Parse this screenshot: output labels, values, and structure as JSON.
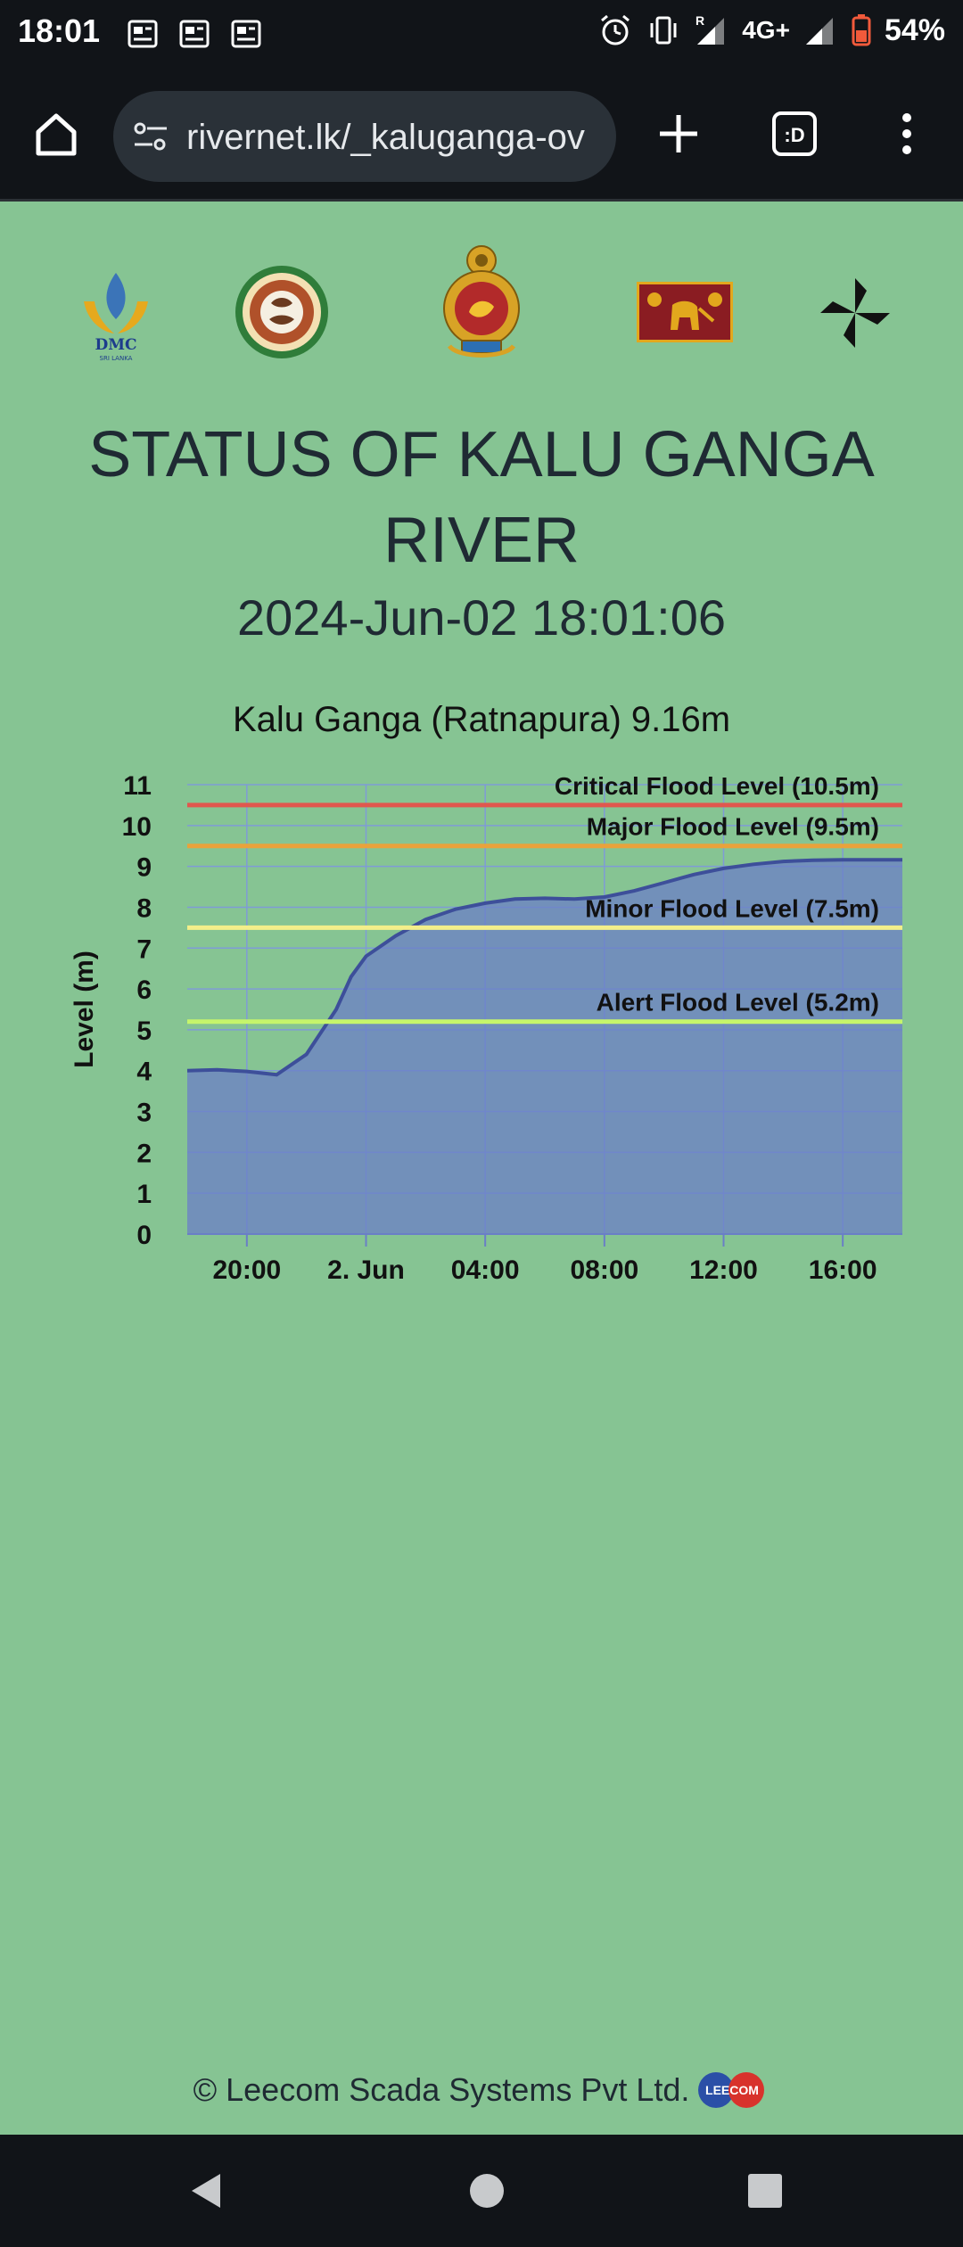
{
  "status_bar": {
    "time": "18:01",
    "network": "4G+",
    "battery": "54%"
  },
  "browser": {
    "url": "rivernet.lk/_kaluganga-ov",
    "tab_count_label": ":D"
  },
  "logos": [
    "dmc-logo",
    "department-seal",
    "national-emblem",
    "lion-flag",
    "pinwheel-logo"
  ],
  "dmc_logo": {
    "text": "DMC",
    "subtext": "SRI LANKA"
  },
  "page": {
    "title": "STATUS OF KALU GANGA RIVER",
    "datetime": "2024-Jun-02 18:01:06"
  },
  "chart_data": {
    "type": "area",
    "title": "Kalu Ganga (Ratnapura) 9.16m",
    "xlabel": "",
    "ylabel": "Level (m)",
    "ylim": [
      0,
      11
    ],
    "yticks": [
      0,
      1,
      2,
      3,
      4,
      5,
      6,
      7,
      8,
      9,
      10,
      11
    ],
    "x_tick_labels": [
      "20:00",
      "2. Jun",
      "04:00",
      "08:00",
      "12:00",
      "16:00"
    ],
    "x_tick_hours": [
      0,
      4,
      8,
      12,
      16,
      20
    ],
    "x_range_hours": [
      -2,
      22
    ],
    "grid": true,
    "series": [
      {
        "name": "",
        "color": "#6b7fc7",
        "points": [
          [
            -2,
            4.0
          ],
          [
            -1,
            4.02
          ],
          [
            0,
            3.98
          ],
          [
            1,
            3.9
          ],
          [
            2,
            4.4
          ],
          [
            3,
            5.5
          ],
          [
            3.5,
            6.3
          ],
          [
            4,
            6.8
          ],
          [
            5,
            7.3
          ],
          [
            6,
            7.7
          ],
          [
            7,
            7.95
          ],
          [
            8,
            8.1
          ],
          [
            9,
            8.2
          ],
          [
            10,
            8.22
          ],
          [
            11,
            8.2
          ],
          [
            12,
            8.25
          ],
          [
            13,
            8.4
          ],
          [
            14,
            8.6
          ],
          [
            15,
            8.8
          ],
          [
            16,
            8.95
          ],
          [
            17,
            9.05
          ],
          [
            18,
            9.12
          ],
          [
            19,
            9.15
          ],
          [
            20,
            9.16
          ],
          [
            22,
            9.16
          ]
        ]
      }
    ],
    "threshold_lines": [
      {
        "label": "Critical Flood Level (10.5m)",
        "value": 10.5,
        "color": "#e0574e"
      },
      {
        "label": "Major Flood Level (9.5m)",
        "value": 9.5,
        "color": "#e9a23b"
      },
      {
        "label": "Minor Flood Level (7.5m)",
        "value": 7.5,
        "color": "#f3ef8a"
      },
      {
        "label": "Alert Flood Level (5.2m)",
        "value": 5.2,
        "color": "#c6f56b"
      }
    ]
  },
  "footer": {
    "text": "© Leecom Scada Systems Pvt Ltd.",
    "badge": "LEECOM"
  }
}
